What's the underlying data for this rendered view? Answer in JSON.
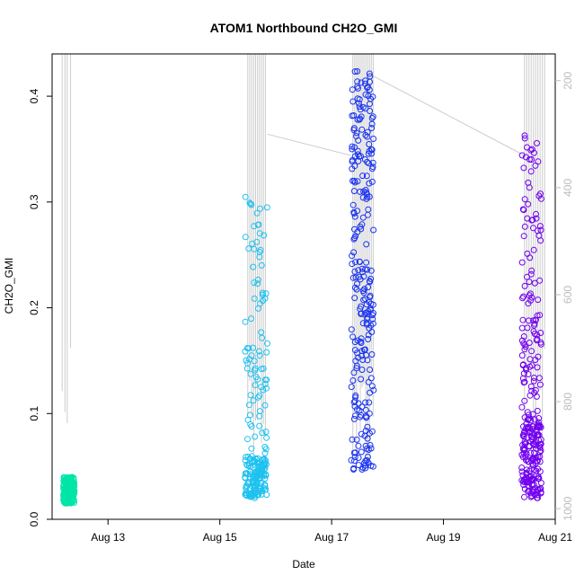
{
  "chart_data": {
    "type": "scatter",
    "title": "ATOM1 Northbound CH2O_GMI",
    "xlabel": "Date",
    "ylabel": "CH2O_GMI",
    "xlim_days": [
      12.0,
      21.0
    ],
    "ylim": [
      0.0,
      0.44
    ],
    "x_ticks": [
      {
        "value": 13,
        "label": "Aug 13"
      },
      {
        "value": 15,
        "label": "Aug 15"
      },
      {
        "value": 17,
        "label": "Aug 17"
      },
      {
        "value": 19,
        "label": "Aug 19"
      },
      {
        "value": 21,
        "label": "Aug 21"
      }
    ],
    "y_ticks": [
      {
        "value": 0.0,
        "label": "0.0"
      },
      {
        "value": 0.1,
        "label": "0.1"
      },
      {
        "value": 0.2,
        "label": "0.2"
      },
      {
        "value": 0.3,
        "label": "0.3"
      },
      {
        "value": 0.4,
        "label": "0.4"
      }
    ],
    "y2_axis": {
      "reversed": true,
      "range": [
        1020,
        150
      ],
      "ticks": [
        {
          "value": 200,
          "label": "200"
        },
        {
          "value": 400,
          "label": "400"
        },
        {
          "value": 600,
          "label": "600"
        },
        {
          "value": 800,
          "label": "800"
        },
        {
          "value": 1000,
          "label": "1000"
        }
      ],
      "color": "#bbbbbb"
    },
    "series": [
      {
        "color": "#00e5a8",
        "x_range": [
          12.2,
          12.4
        ],
        "y_range": [
          0.015,
          0.04
        ],
        "count": 220
      },
      {
        "color": "#1ec1ef",
        "x_range": [
          15.45,
          15.85
        ],
        "y_range": [
          0.02,
          0.305
        ],
        "count": 230
      },
      {
        "color": "#1a33f0",
        "x_range": [
          17.35,
          17.75
        ],
        "y_range": [
          0.046,
          0.425
        ],
        "count": 260
      },
      {
        "color": "#7000ee",
        "x_range": [
          20.4,
          20.75
        ],
        "y_range": [
          0.02,
          0.365
        ],
        "count": 280
      }
    ],
    "altitude_trace_color": "#cccccc",
    "grid": false,
    "legend": "none"
  }
}
